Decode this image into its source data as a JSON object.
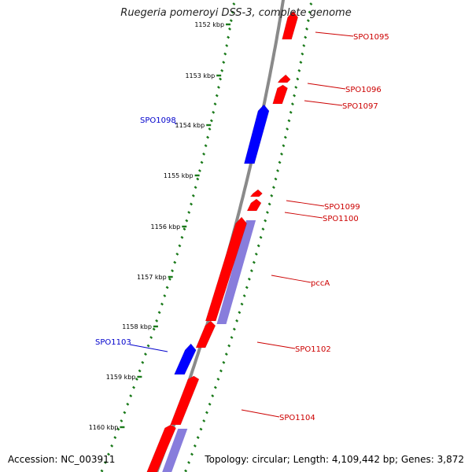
{
  "title": "Ruegeria pomeroyi DSS-3, complete genome",
  "footer": {
    "accession": "Accession: NC_003911",
    "topology": "Topology: circular; Length: 4,109,442 bp; Genes: 3,872"
  },
  "scale_labels": [
    "1152 kbp",
    "1153 kbp",
    "1154 kbp",
    "1155 kbp",
    "1156 kbp",
    "1157 kbp",
    "1158 kbp",
    "1159 kbp",
    "1160 kbp"
  ],
  "genes": [
    {
      "label": "SPO1095",
      "strand": "+"
    },
    {
      "label": "SPO1096",
      "strand": "+"
    },
    {
      "label": "SPO1097",
      "strand": "+"
    },
    {
      "label": "SPO1098",
      "strand": "-"
    },
    {
      "label": "SPO1099",
      "strand": "+"
    },
    {
      "label": "SPO1100",
      "strand": "+"
    },
    {
      "label": "pccA",
      "strand": "+"
    },
    {
      "label": "SPO1102",
      "strand": "+"
    },
    {
      "label": "SPO1103",
      "strand": "-"
    },
    {
      "label": "SPO1104",
      "strand": "+"
    }
  ],
  "colors": {
    "forward_gene": "#ff0000",
    "reverse_gene": "#0000ff",
    "feature_band": "#7b6fd8",
    "backbone": "#8a8a8a",
    "tick": "#1a7a1a",
    "forward_label": "#cc0000",
    "reverse_label": "#0000cc"
  }
}
